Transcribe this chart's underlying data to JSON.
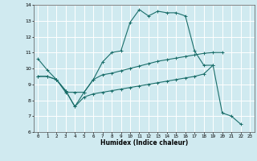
{
  "xlabel": "Humidex (Indice chaleur)",
  "bg_color": "#d0eaf0",
  "grid_color": "#ffffff",
  "line_color": "#1a6e6a",
  "xlim": [
    -0.5,
    23.5
  ],
  "ylim": [
    6,
    14
  ],
  "xticks": [
    0,
    1,
    2,
    3,
    4,
    5,
    6,
    7,
    8,
    9,
    10,
    11,
    12,
    13,
    14,
    15,
    16,
    17,
    18,
    19,
    20,
    21,
    22,
    23
  ],
  "yticks": [
    6,
    7,
    8,
    9,
    10,
    11,
    12,
    13,
    14
  ],
  "series1_x": [
    0,
    1,
    2,
    3,
    4,
    5,
    6,
    7,
    8,
    9,
    10,
    11,
    12,
    13,
    14,
    15,
    16,
    17,
    18,
    19
  ],
  "series1_y": [
    10.6,
    9.9,
    9.3,
    8.5,
    8.5,
    8.5,
    9.3,
    10.4,
    11.0,
    11.1,
    12.9,
    13.7,
    13.3,
    13.6,
    13.5,
    13.5,
    13.3,
    11.1,
    10.2,
    10.2
  ],
  "series2_x": [
    0,
    1,
    2,
    3,
    4,
    5,
    6,
    7,
    8,
    9,
    10,
    11,
    12,
    13,
    14,
    15,
    16,
    17,
    18,
    19,
    20
  ],
  "series2_y": [
    9.5,
    9.5,
    9.3,
    8.6,
    7.6,
    8.5,
    9.3,
    9.6,
    9.7,
    9.85,
    10.0,
    10.15,
    10.3,
    10.45,
    10.55,
    10.65,
    10.75,
    10.85,
    10.95,
    11.0,
    11.0
  ],
  "series3_x": [
    0,
    1,
    2,
    3,
    4,
    5,
    6,
    7,
    8,
    9,
    10,
    11,
    12,
    13,
    14,
    15,
    16,
    17,
    18,
    19,
    20,
    21,
    22
  ],
  "series3_y": [
    9.5,
    9.5,
    9.3,
    8.6,
    7.6,
    8.2,
    8.4,
    8.5,
    8.6,
    8.7,
    8.8,
    8.9,
    9.0,
    9.1,
    9.2,
    9.3,
    9.4,
    9.5,
    9.65,
    10.2,
    7.2,
    7.0,
    6.5
  ]
}
